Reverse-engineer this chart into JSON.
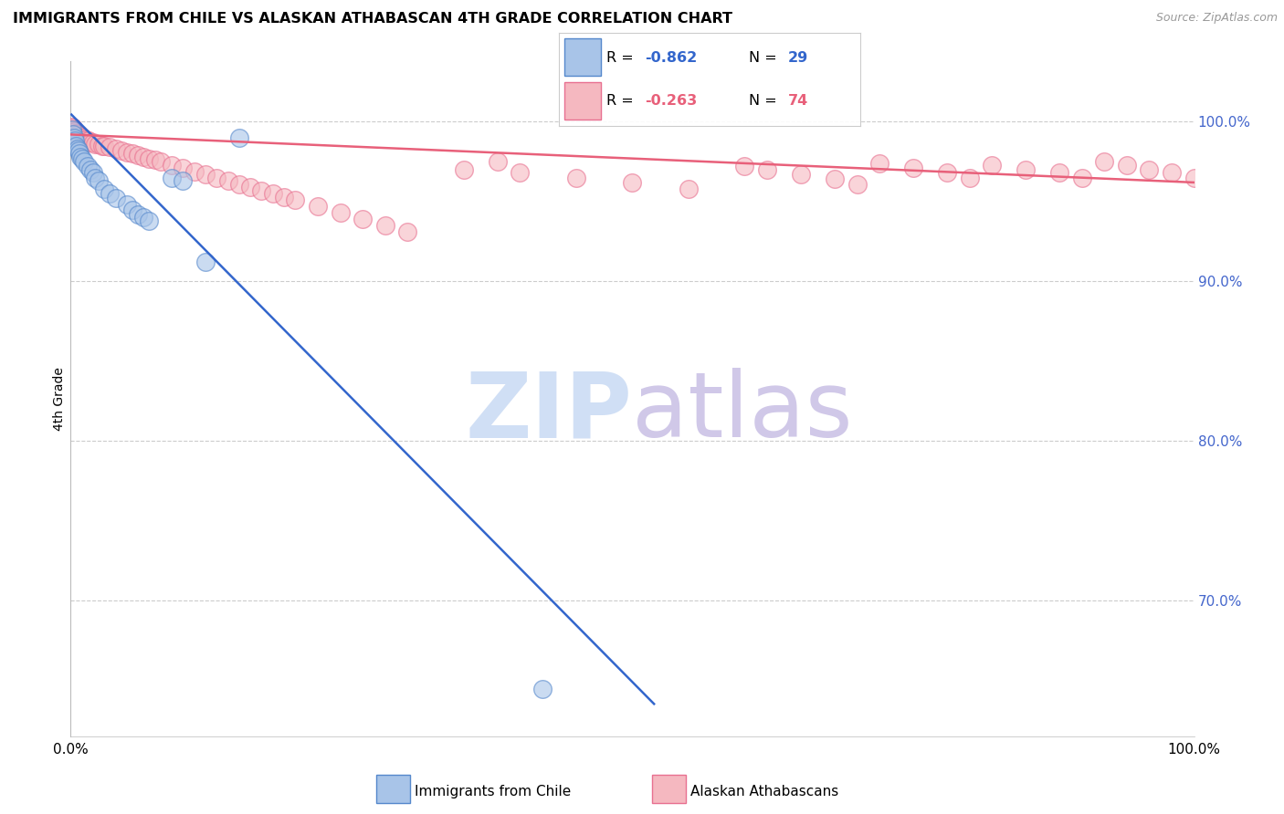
{
  "title": "IMMIGRANTS FROM CHILE VS ALASKAN ATHABASCAN 4TH GRADE CORRELATION CHART",
  "source": "Source: ZipAtlas.com",
  "ylabel": "4th Grade",
  "yticks": [
    0.7,
    0.8,
    0.9,
    1.0
  ],
  "ytick_labels": [
    "70.0%",
    "80.0%",
    "90.0%",
    "100.0%"
  ],
  "xmin": 0.0,
  "xmax": 1.0,
  "ymin": 0.615,
  "ymax": 1.038,
  "blue_R": -0.862,
  "blue_N": 29,
  "pink_R": -0.263,
  "pink_N": 74,
  "legend_label_blue": "Immigrants from Chile",
  "legend_label_pink": "Alaskan Athabascans",
  "blue_color": "#a8c4e8",
  "pink_color": "#f5b8c0",
  "blue_edge_color": "#5588cc",
  "pink_edge_color": "#e87090",
  "blue_line_color": "#3366cc",
  "pink_line_color": "#e8607a",
  "grid_color": "#cccccc",
  "watermark_zip_color": "#d0dff5",
  "watermark_atlas_color": "#d0c8e8",
  "blue_scatter_x": [
    0.001,
    0.002,
    0.003,
    0.004,
    0.005,
    0.006,
    0.007,
    0.008,
    0.009,
    0.01,
    0.012,
    0.015,
    0.018,
    0.02,
    0.022,
    0.025,
    0.03,
    0.035,
    0.04,
    0.05,
    0.055,
    0.06,
    0.065,
    0.07,
    0.09,
    0.1,
    0.12,
    0.15,
    0.42
  ],
  "blue_scatter_y": [
    0.995,
    0.992,
    0.99,
    0.988,
    0.985,
    0.983,
    0.982,
    0.98,
    0.978,
    0.977,
    0.975,
    0.972,
    0.97,
    0.968,
    0.965,
    0.963,
    0.958,
    0.955,
    0.952,
    0.948,
    0.945,
    0.942,
    0.94,
    0.938,
    0.965,
    0.963,
    0.912,
    0.99,
    0.645
  ],
  "pink_scatter_x": [
    0.001,
    0.002,
    0.003,
    0.003,
    0.004,
    0.005,
    0.005,
    0.006,
    0.007,
    0.008,
    0.009,
    0.01,
    0.011,
    0.012,
    0.013,
    0.015,
    0.016,
    0.018,
    0.02,
    0.022,
    0.025,
    0.028,
    0.03,
    0.035,
    0.04,
    0.045,
    0.05,
    0.055,
    0.06,
    0.065,
    0.07,
    0.075,
    0.08,
    0.09,
    0.1,
    0.11,
    0.12,
    0.13,
    0.14,
    0.15,
    0.16,
    0.17,
    0.18,
    0.19,
    0.2,
    0.22,
    0.24,
    0.26,
    0.28,
    0.3,
    0.35,
    0.4,
    0.45,
    0.5,
    0.55,
    0.6,
    0.62,
    0.65,
    0.68,
    0.7,
    0.72,
    0.75,
    0.78,
    0.8,
    0.82,
    0.85,
    0.88,
    0.9,
    0.92,
    0.94,
    0.96,
    0.98,
    1.0,
    0.38
  ],
  "pink_scatter_y": [
    0.997,
    0.996,
    0.995,
    0.994,
    0.994,
    0.993,
    0.993,
    0.992,
    0.992,
    0.991,
    0.991,
    0.99,
    0.99,
    0.989,
    0.989,
    0.988,
    0.988,
    0.987,
    0.987,
    0.986,
    0.986,
    0.985,
    0.985,
    0.984,
    0.983,
    0.982,
    0.981,
    0.98,
    0.979,
    0.978,
    0.977,
    0.976,
    0.975,
    0.973,
    0.971,
    0.969,
    0.967,
    0.965,
    0.963,
    0.961,
    0.959,
    0.957,
    0.955,
    0.953,
    0.951,
    0.947,
    0.943,
    0.939,
    0.935,
    0.931,
    0.97,
    0.968,
    0.965,
    0.962,
    0.958,
    0.972,
    0.97,
    0.967,
    0.964,
    0.961,
    0.974,
    0.971,
    0.968,
    0.965,
    0.973,
    0.97,
    0.968,
    0.965,
    0.975,
    0.973,
    0.97,
    0.968,
    0.965,
    0.975
  ],
  "blue_line_x0": 0.0,
  "blue_line_y0": 1.005,
  "blue_line_x1": 0.52,
  "blue_line_y1": 0.635,
  "pink_line_x0": 0.0,
  "pink_line_y0": 0.992,
  "pink_line_x1": 1.0,
  "pink_line_y1": 0.962
}
